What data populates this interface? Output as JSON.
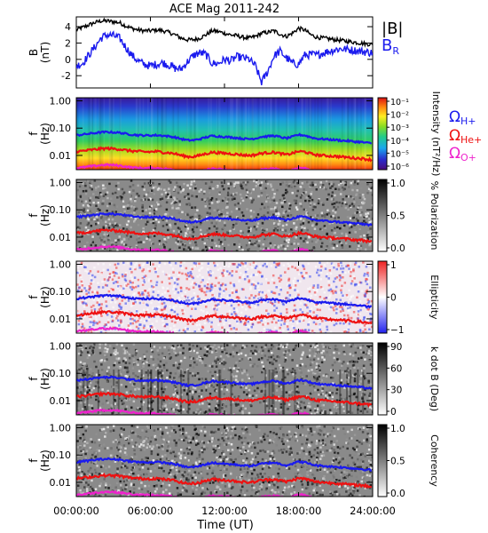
{
  "title": "ACE Mag 2011-242",
  "colors": {
    "H": "#1a1aee",
    "He": "#ee1111",
    "O": "#ee22cc",
    "Btot": "#000000",
    "BR": "#1a1aee"
  },
  "x_axis": {
    "label": "Time (UT)",
    "ticks": [
      "00:00:00",
      "06:00:00",
      "12:00:00",
      "18:00:00",
      "24:00:00"
    ]
  },
  "chart_data": [
    {
      "type": "line",
      "name": "field",
      "ylabel": "B (nT)",
      "ylim": [
        -3.5,
        5.2
      ],
      "yticks": [
        "4",
        "2",
        "0",
        "-2"
      ],
      "legend": [
        "|B|",
        "B_R"
      ],
      "x_hours": [
        0,
        0.5,
        1,
        1.5,
        2,
        2.5,
        3,
        3.5,
        4,
        4.5,
        5,
        5.5,
        6,
        6.5,
        7,
        7.5,
        8,
        8.5,
        9,
        9.5,
        10,
        10.5,
        11,
        11.5,
        12,
        12.5,
        13,
        13.5,
        14,
        14.5,
        15,
        15.5,
        16,
        16.5,
        17,
        17.5,
        18,
        18.5,
        19,
        19.5,
        20,
        20.5,
        21,
        21.5,
        22,
        22.5,
        23,
        23.5,
        24
      ],
      "series": [
        {
          "name": "|B|",
          "values": [
            3.6,
            3.9,
            4.2,
            4.5,
            4.7,
            4.7,
            4.6,
            4.5,
            4.1,
            3.8,
            3.6,
            3.5,
            3.5,
            3.6,
            3.5,
            3.3,
            3.0,
            2.6,
            2.4,
            2.4,
            2.6,
            3.0,
            3.5,
            3.4,
            3.2,
            3.0,
            2.9,
            2.7,
            2.6,
            2.8,
            3.2,
            3.3,
            3.5,
            3.1,
            2.8,
            3.2,
            3.8,
            3.6,
            3.0,
            2.7,
            2.6,
            2.5,
            2.4,
            2.3,
            2.2,
            2.1,
            2.0,
            1.9,
            1.8
          ]
        },
        {
          "name": "B_R",
          "values": [
            -0.8,
            -0.5,
            0.5,
            1.5,
            2.6,
            3.0,
            2.9,
            2.6,
            1.5,
            0.5,
            -0.2,
            -0.6,
            -0.8,
            -0.6,
            -0.4,
            -0.7,
            -1.1,
            -1.2,
            -0.3,
            0.5,
            0.8,
            0.6,
            -0.5,
            -0.5,
            0.0,
            -0.2,
            0.3,
            0.2,
            0.0,
            -0.8,
            -2.8,
            -1.5,
            0.4,
            1.0,
            0.2,
            -0.5,
            -0.6,
            0.5,
            0.6,
            0.5,
            0.8,
            1.0,
            1.2,
            1.3,
            1.2,
            1.1,
            1.0,
            0.9,
            0.8
          ]
        }
      ]
    },
    {
      "type": "heatmap",
      "name": "power",
      "ylabel": "f (Hz)",
      "yticks": [
        "1.00",
        "0.10",
        "0.01"
      ],
      "colorbar": {
        "label": "Intensity (nT²/Hz)",
        "ticks": [
          "10⁻¹",
          "10⁻²",
          "10⁻³",
          "10⁻⁴",
          "10⁻⁵",
          "10⁻⁶"
        ]
      },
      "legend": [
        "Ω_H+",
        "Ω_He+",
        "Ω_O+"
      ]
    },
    {
      "type": "heatmap",
      "name": "polarization",
      "ylabel": "f (Hz)",
      "yticks": [
        "1.00",
        "0.10",
        "0.01"
      ],
      "colorbar": {
        "label": "% Polarization",
        "ticks": [
          "1.0",
          "0.5",
          "0.0"
        ]
      }
    },
    {
      "type": "heatmap",
      "name": "ellipticity",
      "ylabel": "f (Hz)",
      "yticks": [
        "1.00",
        "0.10",
        "0.01"
      ],
      "colorbar": {
        "label": "Ellipticity",
        "ticks": [
          "1",
          "0",
          "−1"
        ]
      }
    },
    {
      "type": "heatmap",
      "name": "kdotb",
      "ylabel": "f (Hz)",
      "yticks": [
        "1.00",
        "0.10",
        "0.01"
      ],
      "colorbar": {
        "label": "k dot B (Deg)",
        "ticks": [
          "90",
          "60",
          "30",
          "0"
        ]
      }
    },
    {
      "type": "heatmap",
      "name": "coherency",
      "ylabel": "f (Hz)",
      "yticks": [
        "1.00",
        "0.10",
        "0.01"
      ],
      "colorbar": {
        "label": "Coherency",
        "ticks": [
          "1.0",
          "0.5",
          "0.0"
        ]
      }
    }
  ],
  "gyrofrequency_lines": {
    "x_hours": [
      0,
      0.5,
      1,
      1.5,
      2,
      2.5,
      3,
      3.5,
      4,
      4.5,
      5,
      5.5,
      6,
      6.5,
      7,
      7.5,
      8,
      8.5,
      9,
      9.5,
      10,
      10.5,
      11,
      11.5,
      12,
      12.5,
      13,
      13.5,
      14,
      14.5,
      15,
      15.5,
      16,
      16.5,
      17,
      17.5,
      18,
      18.5,
      19,
      19.5,
      20,
      20.5,
      21,
      21.5,
      22,
      22.5,
      23,
      23.5,
      24
    ],
    "H_hz": [
      0.055,
      0.058,
      0.062,
      0.066,
      0.07,
      0.072,
      0.07,
      0.068,
      0.062,
      0.058,
      0.055,
      0.054,
      0.054,
      0.055,
      0.053,
      0.05,
      0.046,
      0.04,
      0.036,
      0.036,
      0.04,
      0.046,
      0.052,
      0.05,
      0.048,
      0.046,
      0.044,
      0.041,
      0.04,
      0.042,
      0.048,
      0.05,
      0.053,
      0.047,
      0.042,
      0.048,
      0.057,
      0.054,
      0.046,
      0.041,
      0.04,
      0.038,
      0.037,
      0.035,
      0.034,
      0.032,
      0.031,
      0.029,
      0.028
    ],
    "He_hz": [
      0.014,
      0.0145,
      0.0155,
      0.0165,
      0.0175,
      0.018,
      0.0175,
      0.017,
      0.0155,
      0.0145,
      0.014,
      0.0135,
      0.0135,
      0.014,
      0.013,
      0.0125,
      0.0115,
      0.01,
      0.009,
      0.009,
      0.01,
      0.0115,
      0.013,
      0.0125,
      0.012,
      0.0115,
      0.011,
      0.0103,
      0.01,
      0.0105,
      0.012,
      0.0125,
      0.013,
      0.0118,
      0.0105,
      0.012,
      0.014,
      0.0135,
      0.0115,
      0.0103,
      0.01,
      0.0095,
      0.0093,
      0.0088,
      0.0085,
      0.008,
      0.0078,
      0.0073,
      0.007
    ],
    "O_hz": [
      0.0035,
      0.0036,
      0.0039,
      0.0041,
      0.0044,
      0.0045,
      0.0044,
      0.0042,
      0.0039,
      0.0036,
      0.0035,
      0.0034,
      0.0034,
      0.0034,
      0.0033,
      0.0031,
      0.0029,
      0.0025,
      0.0023,
      0.0023,
      0.0025,
      0.0029,
      0.0033,
      0.0031,
      0.003,
      0.0029,
      0.0027,
      0.0026,
      0.0025,
      0.0026,
      0.003,
      0.0031,
      0.0033,
      0.0029,
      0.0026,
      0.003,
      0.0036,
      0.0034,
      0.0029,
      0.0026,
      0.0025,
      0.0024,
      0.0023,
      0.0022,
      0.0021,
      0.002,
      0.0019,
      0.0018,
      0.0017
    ]
  }
}
